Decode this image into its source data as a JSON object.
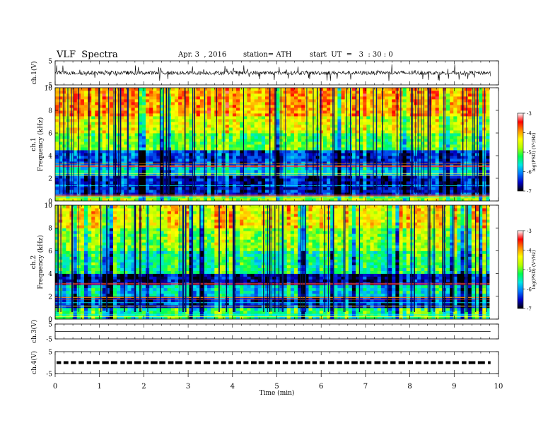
{
  "header": {
    "title": "VLF  Spectra",
    "date": "Apr. 3  , 2016",
    "station": "station= ATH",
    "start": "start  UT  =   3  : 30 : 0"
  },
  "chart_data": [
    {
      "type": "line",
      "name": "ch1-waveform",
      "ylabel": "ch.1(V)",
      "ylim": [
        -5,
        5
      ],
      "yticks": [
        "5",
        "-5"
      ],
      "xlim": [
        0,
        10
      ],
      "trace": "noisy waveform centered near 0 V with frequent spikes"
    },
    {
      "type": "heatmap",
      "name": "ch1-spectrogram",
      "ylabel_channel": "ch.1",
      "ylabel": "Frequency  (kHz)",
      "ylim": [
        0,
        10
      ],
      "yticks": [
        "0",
        "2",
        "4",
        "6",
        "8",
        "10"
      ],
      "xlim": [
        0,
        9.8
      ],
      "colorbar": {
        "label": "log(PSD) (V²/Hz)",
        "range": [
          -7,
          -3
        ],
        "ticks": [
          "-3",
          "-4",
          "-5",
          "-6",
          "-7"
        ],
        "colors": [
          "#000000",
          "#0000c8",
          "#0078ff",
          "#00e6e6",
          "#00ff50",
          "#b4ff00",
          "#ffff00",
          "#ff8c00",
          "#ff0000",
          "#ffffff"
        ]
      },
      "bands": [
        {
          "from": 0.0,
          "to": 0.5,
          "level": -4.8
        },
        {
          "from": 0.5,
          "to": 2.2,
          "level": -6.5
        },
        {
          "from": 2.2,
          "to": 3.0,
          "level": -5.7
        },
        {
          "from": 3.0,
          "to": 4.5,
          "level": -6.3
        },
        {
          "from": 4.5,
          "to": 6.0,
          "level": -5.0
        },
        {
          "from": 6.0,
          "to": 7.5,
          "level": -4.5
        },
        {
          "from": 7.5,
          "to": 10.0,
          "level": -4.0
        }
      ]
    },
    {
      "type": "heatmap",
      "name": "ch2-spectrogram",
      "ylabel_channel": "ch.2",
      "ylabel": "Frequency  (kHz)",
      "ylim": [
        0,
        10
      ],
      "yticks": [
        "0",
        "2",
        "4",
        "6",
        "8",
        "10"
      ],
      "xlim": [
        0,
        9.8
      ],
      "colorbar": {
        "label": "log(PSD) (V²/Hz)",
        "range": [
          -7,
          -3
        ],
        "ticks": [
          "-3",
          "-4",
          "-5",
          "-6",
          "-7"
        ],
        "colors": [
          "#000000",
          "#0000c8",
          "#0078ff",
          "#00e6e6",
          "#00ff50",
          "#b4ff00",
          "#ffff00",
          "#ff8c00",
          "#ff0000",
          "#ffffff"
        ]
      },
      "bands": [
        {
          "from": 0.0,
          "to": 1.0,
          "level": -5.2
        },
        {
          "from": 1.0,
          "to": 2.0,
          "level": -6.4
        },
        {
          "from": 2.0,
          "to": 3.0,
          "level": -5.6
        },
        {
          "from": 3.0,
          "to": 4.0,
          "level": -6.6
        },
        {
          "from": 4.0,
          "to": 6.0,
          "level": -5.3
        },
        {
          "from": 6.0,
          "to": 8.0,
          "level": -4.8
        },
        {
          "from": 8.0,
          "to": 10.0,
          "level": -4.3
        }
      ]
    },
    {
      "type": "line",
      "name": "ch3-waveform",
      "ylabel": "ch.3(V)",
      "ylim": [
        -5,
        5
      ],
      "yticks": [
        "5",
        "-5"
      ],
      "xlim": [
        0,
        10
      ],
      "trace": "flat line near 0 V"
    },
    {
      "type": "line",
      "name": "ch4-waveform",
      "ylabel": "ch.4(V)",
      "ylim": [
        -5,
        5
      ],
      "yticks": [
        "5",
        "-5"
      ],
      "xlim": [
        0,
        10
      ],
      "trace": "thick dashed line near 0 V"
    }
  ],
  "xaxis": {
    "label": "Time  (min)",
    "range": [
      0,
      10
    ],
    "ticks": [
      "0",
      "1",
      "2",
      "3",
      "4",
      "5",
      "6",
      "7",
      "8",
      "9",
      "10"
    ]
  }
}
